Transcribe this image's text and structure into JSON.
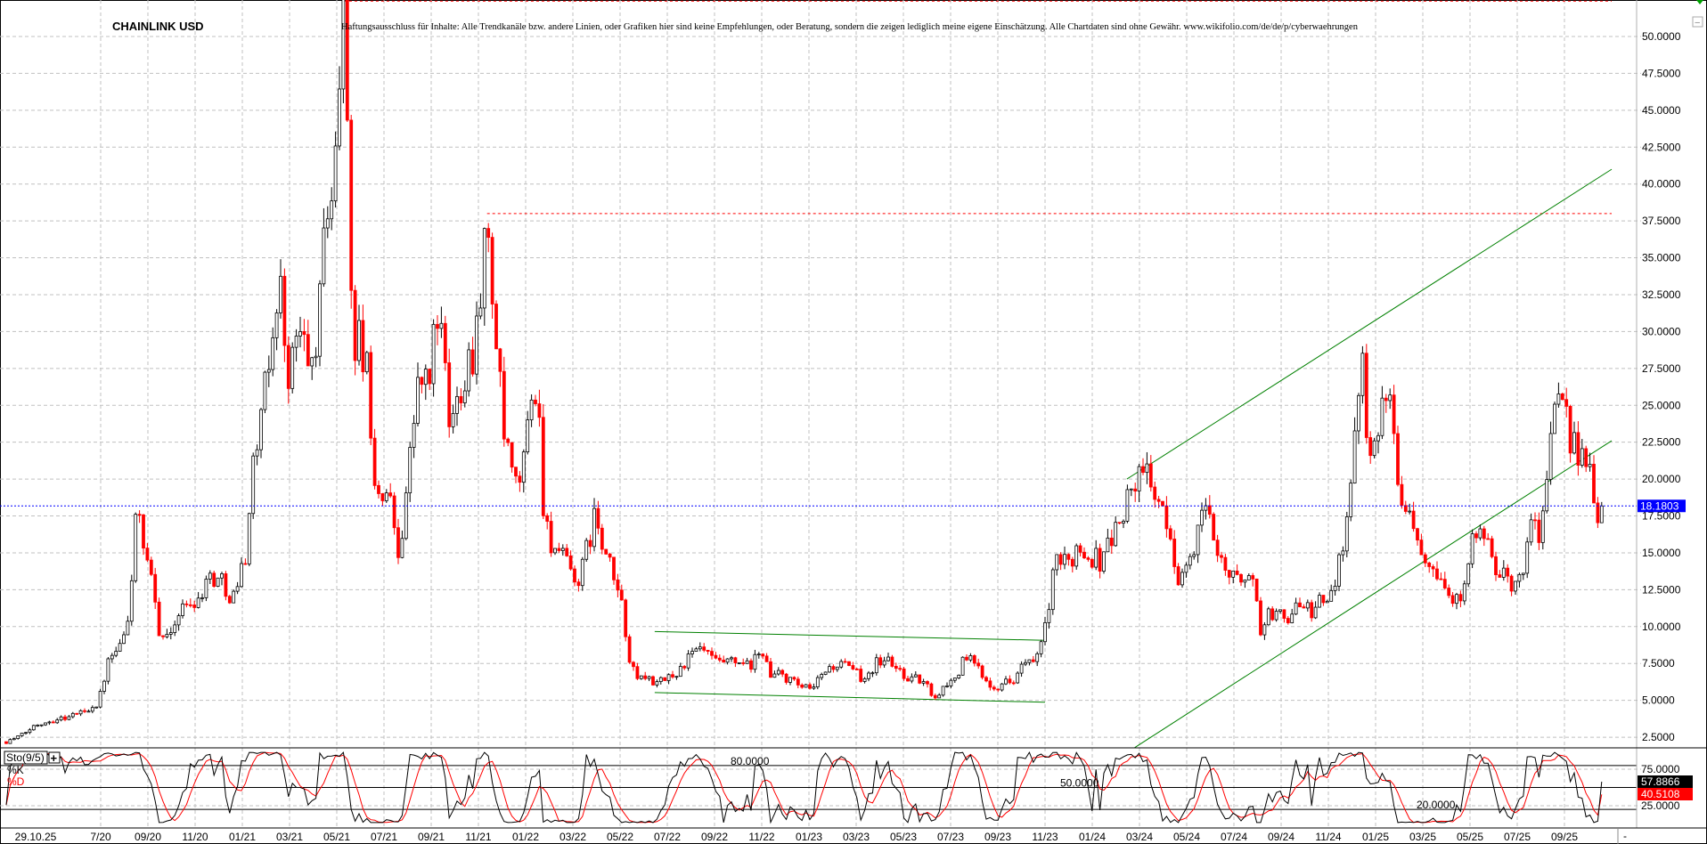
{
  "header": {
    "symbol": "CHAINLINK USD",
    "disclaimer": "Haftungsausschluss für Inhalte: Alle Trendkanäle bzw. andere Linien, oder Grafiken hier sind keine Empfehlungen, oder Beratung, sondern die zeigen lediglich meine eigene Einschätzung. Alle Chartdaten sind ohne Gewähr. www.wikifolio.com/de/de/p/cyberwaehrungen"
  },
  "colors": {
    "up": "#000000",
    "down": "#ff0000",
    "last_price": "#0000ff",
    "trend": "#008000",
    "resistance": "#ff0000",
    "grid": "#c0c0c0"
  },
  "chart_data": [
    {
      "type": "candlestick",
      "title": "CHAINLINK USD",
      "ylim": [
        1.5,
        52.5
      ],
      "y_ticks": [
        "50.0000",
        "47.5000",
        "45.0000",
        "42.5000",
        "40.0000",
        "37.5000",
        "35.0000",
        "32.5000",
        "30.0000",
        "27.5000",
        "25.0000",
        "22.5000",
        "20.0000",
        "17.5000",
        "15.0000",
        "12.5000",
        "10.0000",
        "7.5000",
        "5.0000",
        "2.5000"
      ],
      "x_ticks": [
        "29.10.25",
        "7/20",
        "09/20",
        "11/20",
        "01/21",
        "03/21",
        "05/21",
        "07/21",
        "09/21",
        "11/21",
        "01/22",
        "03/22",
        "05/22",
        "07/22",
        "09/22",
        "11/22",
        "01/23",
        "03/23",
        "05/23",
        "07/23",
        "09/23",
        "11/23",
        "01/24",
        "03/24",
        "05/24",
        "07/24",
        "09/24",
        "11/24",
        "01/25",
        "03/25",
        "05/25",
        "07/25",
        "09/25"
      ],
      "grid": true,
      "last_price": 18.1803,
      "last_price_label": "18.1803",
      "price_path": [
        [
          "2020-03-01",
          2.2
        ],
        [
          "2020-03-20",
          2.6
        ],
        [
          "2020-04-10",
          3.4
        ],
        [
          "2020-05-01",
          3.7
        ],
        [
          "2020-05-20",
          3.9
        ],
        [
          "2020-06-10",
          4.3
        ],
        [
          "2020-06-28",
          4.8
        ],
        [
          "2020-07-10",
          7.5
        ],
        [
          "2020-07-25",
          8.5
        ],
        [
          "2020-08-05",
          10.0
        ],
        [
          "2020-08-12",
          14.5
        ],
        [
          "2020-08-16",
          18.5
        ],
        [
          "2020-08-25",
          15.0
        ],
        [
          "2020-09-05",
          13.0
        ],
        [
          "2020-09-15",
          10.0
        ],
        [
          "2020-09-25",
          9.0
        ],
        [
          "2020-10-05",
          10.5
        ],
        [
          "2020-10-20",
          11.5
        ],
        [
          "2020-11-05",
          12.0
        ],
        [
          "2020-11-20",
          13.5
        ],
        [
          "2020-12-05",
          13.0
        ],
        [
          "2020-12-20",
          12.0
        ],
        [
          "2021-01-05",
          15.0
        ],
        [
          "2021-01-15",
          21.0
        ],
        [
          "2021-01-28",
          25.0
        ],
        [
          "2021-02-10",
          30.0
        ],
        [
          "2021-02-18",
          34.0
        ],
        [
          "2021-02-28",
          27.0
        ],
        [
          "2021-03-15",
          30.0
        ],
        [
          "2021-03-28",
          27.0
        ],
        [
          "2021-04-10",
          32.0
        ],
        [
          "2021-04-18",
          39.0
        ],
        [
          "2021-04-28",
          40.0
        ],
        [
          "2021-05-05",
          48.0
        ],
        [
          "2021-05-10",
          52.0
        ],
        [
          "2021-05-15",
          44.0
        ],
        [
          "2021-05-22",
          28.0
        ],
        [
          "2021-05-28",
          30.0
        ],
        [
          "2021-06-10",
          27.0
        ],
        [
          "2021-06-22",
          18.0
        ],
        [
          "2021-07-05",
          19.5
        ],
        [
          "2021-07-20",
          15.0
        ],
        [
          "2021-08-01",
          20.0
        ],
        [
          "2021-08-15",
          27.0
        ],
        [
          "2021-08-28",
          26.0
        ],
        [
          "2021-09-07",
          32.0
        ],
        [
          "2021-09-15",
          29.0
        ],
        [
          "2021-09-25",
          23.0
        ],
        [
          "2021-10-10",
          27.0
        ],
        [
          "2021-10-25",
          29.0
        ],
        [
          "2021-11-05",
          34.0
        ],
        [
          "2021-11-12",
          37.0
        ],
        [
          "2021-11-25",
          28.0
        ],
        [
          "2021-12-05",
          22.0
        ],
        [
          "2021-12-20",
          19.0
        ],
        [
          "2022-01-01",
          22.0
        ],
        [
          "2022-01-10",
          27.0
        ],
        [
          "2022-01-18",
          24.0
        ],
        [
          "2022-01-25",
          17.0
        ],
        [
          "2022-02-10",
          15.0
        ],
        [
          "2022-02-25",
          14.0
        ],
        [
          "2022-03-10",
          13.0
        ],
        [
          "2022-03-28",
          17.5
        ],
        [
          "2022-04-10",
          15.0
        ],
        [
          "2022-04-25",
          13.0
        ],
        [
          "2022-05-05",
          11.0
        ],
        [
          "2022-05-15",
          7.0
        ],
        [
          "2022-05-28",
          6.5
        ],
        [
          "2022-06-10",
          6.5
        ],
        [
          "2022-06-18",
          6.0
        ],
        [
          "2022-07-01",
          6.5
        ],
        [
          "2022-07-15",
          7.0
        ],
        [
          "2022-08-01",
          8.0
        ],
        [
          "2022-08-15",
          8.5
        ],
        [
          "2022-09-01",
          7.5
        ],
        [
          "2022-09-15",
          7.5
        ],
        [
          "2022-10-01",
          7.5
        ],
        [
          "2022-10-15",
          7.2
        ],
        [
          "2022-11-05",
          8.5
        ],
        [
          "2022-11-12",
          6.5
        ],
        [
          "2022-11-25",
          6.8
        ],
        [
          "2022-12-15",
          6.0
        ],
        [
          "2023-01-05",
          5.6
        ],
        [
          "2023-01-20",
          7.0
        ],
        [
          "2023-02-10",
          7.5
        ],
        [
          "2023-02-25",
          7.0
        ],
        [
          "2023-03-10",
          6.5
        ],
        [
          "2023-03-25",
          7.5
        ],
        [
          "2023-04-10",
          7.8
        ],
        [
          "2023-04-25",
          7.0
        ],
        [
          "2023-05-10",
          6.5
        ],
        [
          "2023-05-25",
          6.3
        ],
        [
          "2023-06-10",
          5.3
        ],
        [
          "2023-06-25",
          6.0
        ],
        [
          "2023-07-10",
          6.8
        ],
        [
          "2023-07-20",
          8.0
        ],
        [
          "2023-08-05",
          7.2
        ],
        [
          "2023-08-20",
          6.2
        ],
        [
          "2023-09-05",
          6.0
        ],
        [
          "2023-09-20",
          6.5
        ],
        [
          "2023-10-05",
          7.5
        ],
        [
          "2023-10-20",
          7.5
        ],
        [
          "2023-11-05",
          11.0
        ],
        [
          "2023-11-15",
          14.5
        ],
        [
          "2023-11-28",
          14.0
        ],
        [
          "2023-12-10",
          15.5
        ],
        [
          "2023-12-25",
          15.0
        ],
        [
          "2024-01-10",
          14.5
        ],
        [
          "2024-01-25",
          16.0
        ],
        [
          "2024-02-10",
          17.5
        ],
        [
          "2024-02-20",
          19.5
        ],
        [
          "2024-03-05",
          20.0
        ],
        [
          "2024-03-12",
          21.0
        ],
        [
          "2024-03-25",
          18.0
        ],
        [
          "2024-04-10",
          16.0
        ],
        [
          "2024-04-20",
          13.5
        ],
        [
          "2024-05-05",
          14.0
        ],
        [
          "2024-05-20",
          18.0
        ],
        [
          "2024-06-05",
          16.5
        ],
        [
          "2024-06-20",
          14.0
        ],
        [
          "2024-07-05",
          13.0
        ],
        [
          "2024-07-20",
          14.0
        ],
        [
          "2024-08-05",
          10.0
        ],
        [
          "2024-08-20",
          11.0
        ],
        [
          "2024-09-05",
          10.5
        ],
        [
          "2024-09-20",
          11.5
        ],
        [
          "2024-10-05",
          11.0
        ],
        [
          "2024-10-20",
          11.5
        ],
        [
          "2024-11-05",
          12.0
        ],
        [
          "2024-11-15",
          15.0
        ],
        [
          "2024-11-28",
          18.0
        ],
        [
          "2024-12-05",
          24.0
        ],
        [
          "2024-12-13",
          29.5
        ],
        [
          "2024-12-22",
          22.0
        ],
        [
          "2025-01-05",
          24.0
        ],
        [
          "2025-01-15",
          26.0
        ],
        [
          "2025-01-25",
          22.0
        ],
        [
          "2025-02-05",
          19.0
        ],
        [
          "2025-02-20",
          17.0
        ],
        [
          "2025-03-05",
          15.0
        ],
        [
          "2025-03-20",
          14.0
        ],
        [
          "2025-04-05",
          12.0
        ],
        [
          "2025-04-15",
          11.5
        ],
        [
          "2025-04-28",
          14.5
        ],
        [
          "2025-05-10",
          16.5
        ],
        [
          "2025-05-25",
          15.0
        ],
        [
          "2025-06-10",
          13.5
        ],
        [
          "2025-06-22",
          12.5
        ],
        [
          "2025-07-05",
          13.5
        ],
        [
          "2025-07-20",
          17.0
        ],
        [
          "2025-08-01",
          16.5
        ],
        [
          "2025-08-10",
          21.0
        ],
        [
          "2025-08-20",
          25.0
        ],
        [
          "2025-08-28",
          24.0
        ],
        [
          "2025-09-10",
          23.0
        ],
        [
          "2025-09-20",
          22.0
        ],
        [
          "2025-10-01",
          21.0
        ],
        [
          "2025-10-10",
          17.0
        ],
        [
          "2025-10-20",
          18.18
        ]
      ],
      "lines": [
        {
          "kind": "resistance",
          "color": "#ff0000",
          "from": [
            "2021-11-12",
            38.0
          ],
          "to": [
            "2025-10-31",
            38.0
          ]
        },
        {
          "kind": "resistance",
          "color": "#ff0000",
          "from": [
            "2021-05-10",
            52.4
          ],
          "to": [
            "2025-10-31",
            52.4
          ]
        },
        {
          "kind": "trend-upper",
          "color": "#008000",
          "from": [
            "2024-02-15",
            20.0
          ],
          "to": [
            "2025-10-31",
            41.0
          ]
        },
        {
          "kind": "trend-lower",
          "color": "#008000",
          "from": [
            "2024-02-25",
            1.8
          ],
          "to": [
            "2025-10-31",
            22.6
          ]
        },
        {
          "kind": "range-upper",
          "color": "#008000",
          "from": [
            "2022-06-15",
            9.66
          ],
          "to": [
            "2023-11-01",
            9.07
          ]
        },
        {
          "kind": "range-lower",
          "color": "#008000",
          "from": [
            "2022-06-15",
            5.53
          ],
          "to": [
            "2023-11-01",
            4.87
          ]
        }
      ]
    },
    {
      "type": "line",
      "title": "Sto(9/5)",
      "ylim": [
        0,
        100
      ],
      "series": [
        {
          "name": "%K",
          "color": "#000000"
        },
        {
          "name": "%D",
          "color": "#ff0000"
        }
      ],
      "levels": [
        {
          "value": 80,
          "label": "80.0000"
        },
        {
          "value": 50,
          "label": "50.0000"
        },
        {
          "value": 20,
          "label": "20.0000"
        }
      ],
      "y_ticks": [
        "75.0000",
        "25.0000"
      ],
      "k_last": 57.8866,
      "k_label": "57.8866",
      "d_last": 40.5108,
      "d_label": "40.5108",
      "k_period": 9,
      "d_period": 5
    }
  ],
  "controls": {
    "add_indicator": "+",
    "collapse": "−",
    "scroll": "-"
  }
}
